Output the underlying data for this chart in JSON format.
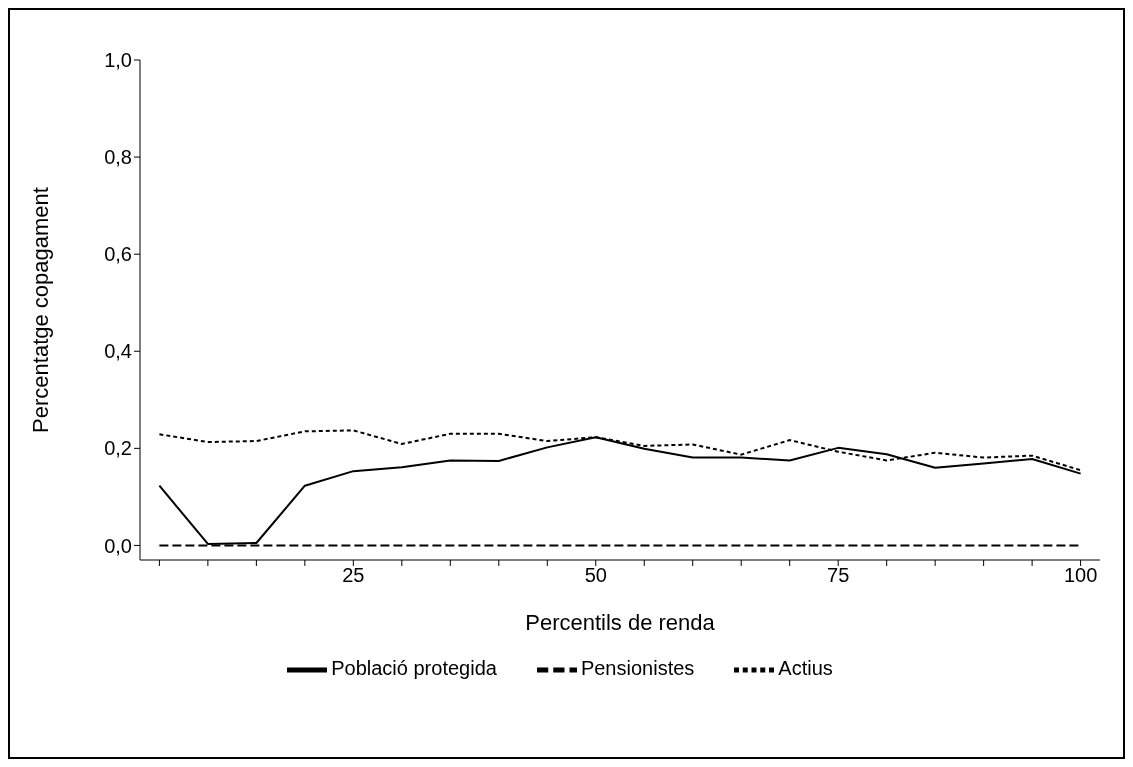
{
  "chart_data": {
    "type": "line",
    "xlabel": "Percentils de renda",
    "ylabel": "Percentatge copagament",
    "x": [
      5,
      10,
      15,
      20,
      25,
      30,
      35,
      40,
      45,
      50,
      55,
      60,
      65,
      70,
      75,
      80,
      85,
      90,
      95,
      100
    ],
    "series": [
      {
        "name": "Població protegida",
        "color": "#000000",
        "line_style": "solid",
        "values": [
          0.123,
          0.003,
          0.005,
          0.123,
          0.153,
          0.161,
          0.175,
          0.174,
          0.202,
          0.223,
          0.199,
          0.181,
          0.181,
          0.175,
          0.201,
          0.188,
          0.16,
          0.169,
          0.178,
          0.148
        ]
      },
      {
        "name": "Pensionistes",
        "color": "#000000",
        "line_style": "dashed",
        "values": [
          0,
          0,
          0,
          0,
          0,
          0,
          0,
          0,
          0,
          0,
          0,
          0,
          0,
          0,
          0,
          0,
          0,
          0,
          0,
          0
        ]
      },
      {
        "name": "Actius",
        "color": "#000000",
        "line_style": "dotted",
        "values": [
          0.229,
          0.213,
          0.215,
          0.235,
          0.237,
          0.209,
          0.23,
          0.23,
          0.215,
          0.223,
          0.205,
          0.208,
          0.187,
          0.217,
          0.193,
          0.175,
          0.191,
          0.181,
          0.185,
          0.155
        ]
      }
    ],
    "xlim": [
      3,
      102
    ],
    "xticks": [
      {
        "value": 5,
        "label": null
      },
      {
        "value": 10,
        "label": null
      },
      {
        "value": 15,
        "label": null
      },
      {
        "value": 20,
        "label": null
      },
      25,
      {
        "value": 30,
        "label": null
      },
      {
        "value": 35,
        "label": null
      },
      {
        "value": 40,
        "label": null
      },
      {
        "value": 45,
        "label": null
      },
      50,
      {
        "value": 55,
        "label": null
      },
      {
        "value": 60,
        "label": null
      },
      {
        "value": 65,
        "label": null
      },
      {
        "value": 70,
        "label": null
      },
      75,
      {
        "value": 80,
        "label": null
      },
      {
        "value": 85,
        "label": null
      },
      {
        "value": 90,
        "label": null
      },
      {
        "value": 95,
        "label": null
      },
      100
    ],
    "ylim": [
      -0.03,
      1
    ],
    "yticks": [
      {
        "value": 0,
        "label": "0,0"
      },
      {
        "value": 0.2,
        "label": "0,2"
      },
      {
        "value": 0.4,
        "label": "0,4"
      },
      {
        "value": 0.6,
        "label": "0,6"
      },
      {
        "value": 0.8,
        "label": "0,8"
      },
      {
        "value": 1,
        "label": "1,0"
      }
    ],
    "grid": false,
    "legend": "bottom",
    "marker": "none"
  }
}
